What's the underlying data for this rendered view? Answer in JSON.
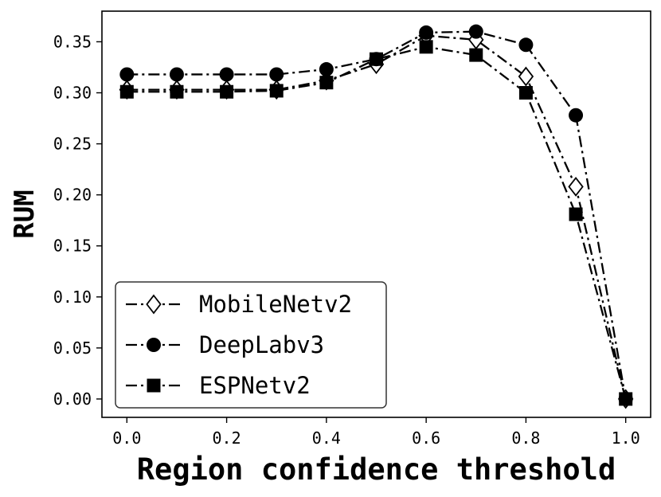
{
  "chart_data": {
    "type": "line",
    "title": "",
    "xlabel": "Region confidence threshold",
    "ylabel": "RUM",
    "x": [
      0.0,
      0.1,
      0.2,
      0.3,
      0.4,
      0.5,
      0.6,
      0.7,
      0.8,
      0.9,
      1.0
    ],
    "xticks": [
      "0.0",
      "0.2",
      "0.4",
      "0.6",
      "0.8",
      "1.0"
    ],
    "xtick_values": [
      0.0,
      0.2,
      0.4,
      0.6,
      0.8,
      1.0
    ],
    "yticks": [
      "0.00",
      "0.05",
      "0.10",
      "0.15",
      "0.20",
      "0.25",
      "0.30",
      "0.35"
    ],
    "ytick_values": [
      0.0,
      0.05,
      0.1,
      0.15,
      0.2,
      0.25,
      0.3,
      0.35
    ],
    "xlim": [
      -0.05,
      1.05
    ],
    "ylim": [
      -0.018,
      0.38
    ],
    "grid": false,
    "legend_position": "lower-left",
    "series": [
      {
        "name": "MobileNetv2",
        "marker": "diamond-open",
        "line_style": "dash-dot",
        "color": "#000000",
        "values": [
          0.303,
          0.303,
          0.303,
          0.303,
          0.312,
          0.328,
          0.356,
          0.352,
          0.316,
          0.208,
          0.0
        ]
      },
      {
        "name": "DeepLabv3",
        "marker": "circle-filled",
        "line_style": "dash-dot",
        "color": "#000000",
        "values": [
          0.318,
          0.318,
          0.318,
          0.318,
          0.323,
          0.333,
          0.359,
          0.36,
          0.347,
          0.278,
          0.0
        ]
      },
      {
        "name": "ESPNetv2",
        "marker": "square-filled",
        "line_style": "dash-dot",
        "color": "#000000",
        "values": [
          0.301,
          0.301,
          0.301,
          0.302,
          0.31,
          0.333,
          0.345,
          0.337,
          0.3,
          0.181,
          0.0
        ]
      }
    ]
  }
}
